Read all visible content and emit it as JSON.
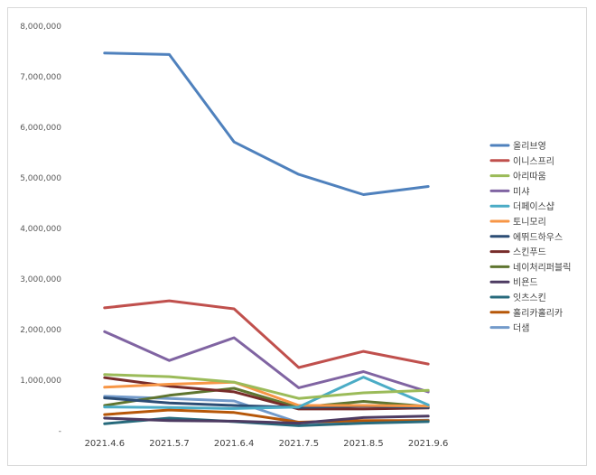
{
  "chart_data": {
    "type": "line",
    "title": "",
    "xlabel": "",
    "ylabel": "",
    "ylim": [
      0,
      8000000
    ],
    "y_ticks": [
      {
        "value": 0,
        "label": "-"
      },
      {
        "value": 1000000,
        "label": "1,000,000"
      },
      {
        "value": 2000000,
        "label": "2,000,000"
      },
      {
        "value": 3000000,
        "label": "3,000,000"
      },
      {
        "value": 4000000,
        "label": "4,000,000"
      },
      {
        "value": 5000000,
        "label": "5,000,000"
      },
      {
        "value": 6000000,
        "label": "6,000,000"
      },
      {
        "value": 7000000,
        "label": "7,000,000"
      },
      {
        "value": 8000000,
        "label": "8,000,000"
      }
    ],
    "categories": [
      "2021.4.6",
      "2021.5.7",
      "2021.6.4",
      "2021.7.5",
      "2021.8.5",
      "2021.9.6"
    ],
    "legend_position": "right",
    "series": [
      {
        "name": "올리브영",
        "color": "#4f81bd",
        "values": [
          7470000,
          7440000,
          5710000,
          5070000,
          4670000,
          4830000
        ]
      },
      {
        "name": "이니스프리",
        "color": "#c0504d",
        "values": [
          2430000,
          2570000,
          2410000,
          1250000,
          1570000,
          1320000
        ]
      },
      {
        "name": "아리따움",
        "color": "#9bbb59",
        "values": [
          1110000,
          1070000,
          960000,
          640000,
          750000,
          800000
        ]
      },
      {
        "name": "미샤",
        "color": "#8064a2",
        "values": [
          1960000,
          1390000,
          1840000,
          850000,
          1170000,
          770000
        ]
      },
      {
        "name": "더페이스샵",
        "color": "#4bacc6",
        "values": [
          470000,
          460000,
          440000,
          470000,
          1060000,
          510000
        ]
      },
      {
        "name": "토니모리",
        "color": "#f79646",
        "values": [
          860000,
          920000,
          960000,
          500000,
          500000,
          490000
        ]
      },
      {
        "name": "에뛰드하우스",
        "color": "#2c4d75",
        "values": [
          650000,
          550000,
          500000,
          460000,
          490000,
          460000
        ]
      },
      {
        "name": "스킨푸드",
        "color": "#772c2a",
        "values": [
          1050000,
          880000,
          770000,
          430000,
          430000,
          450000
        ]
      },
      {
        "name": "네이처리퍼블릭",
        "color": "#5f7530",
        "values": [
          500000,
          700000,
          840000,
          460000,
          580000,
          480000
        ]
      },
      {
        "name": "비욘드",
        "color": "#4d3b62",
        "values": [
          250000,
          200000,
          190000,
          150000,
          260000,
          290000
        ]
      },
      {
        "name": "잇츠스킨",
        "color": "#276a7c",
        "values": [
          140000,
          250000,
          180000,
          100000,
          150000,
          180000
        ]
      },
      {
        "name": "홀리카홀리카",
        "color": "#b65708",
        "values": [
          320000,
          410000,
          360000,
          170000,
          200000,
          200000
        ]
      },
      {
        "name": "더샘",
        "color": "#729aca",
        "values": [
          680000,
          640000,
          590000,
          160000,
          180000,
          210000
        ]
      }
    ]
  }
}
